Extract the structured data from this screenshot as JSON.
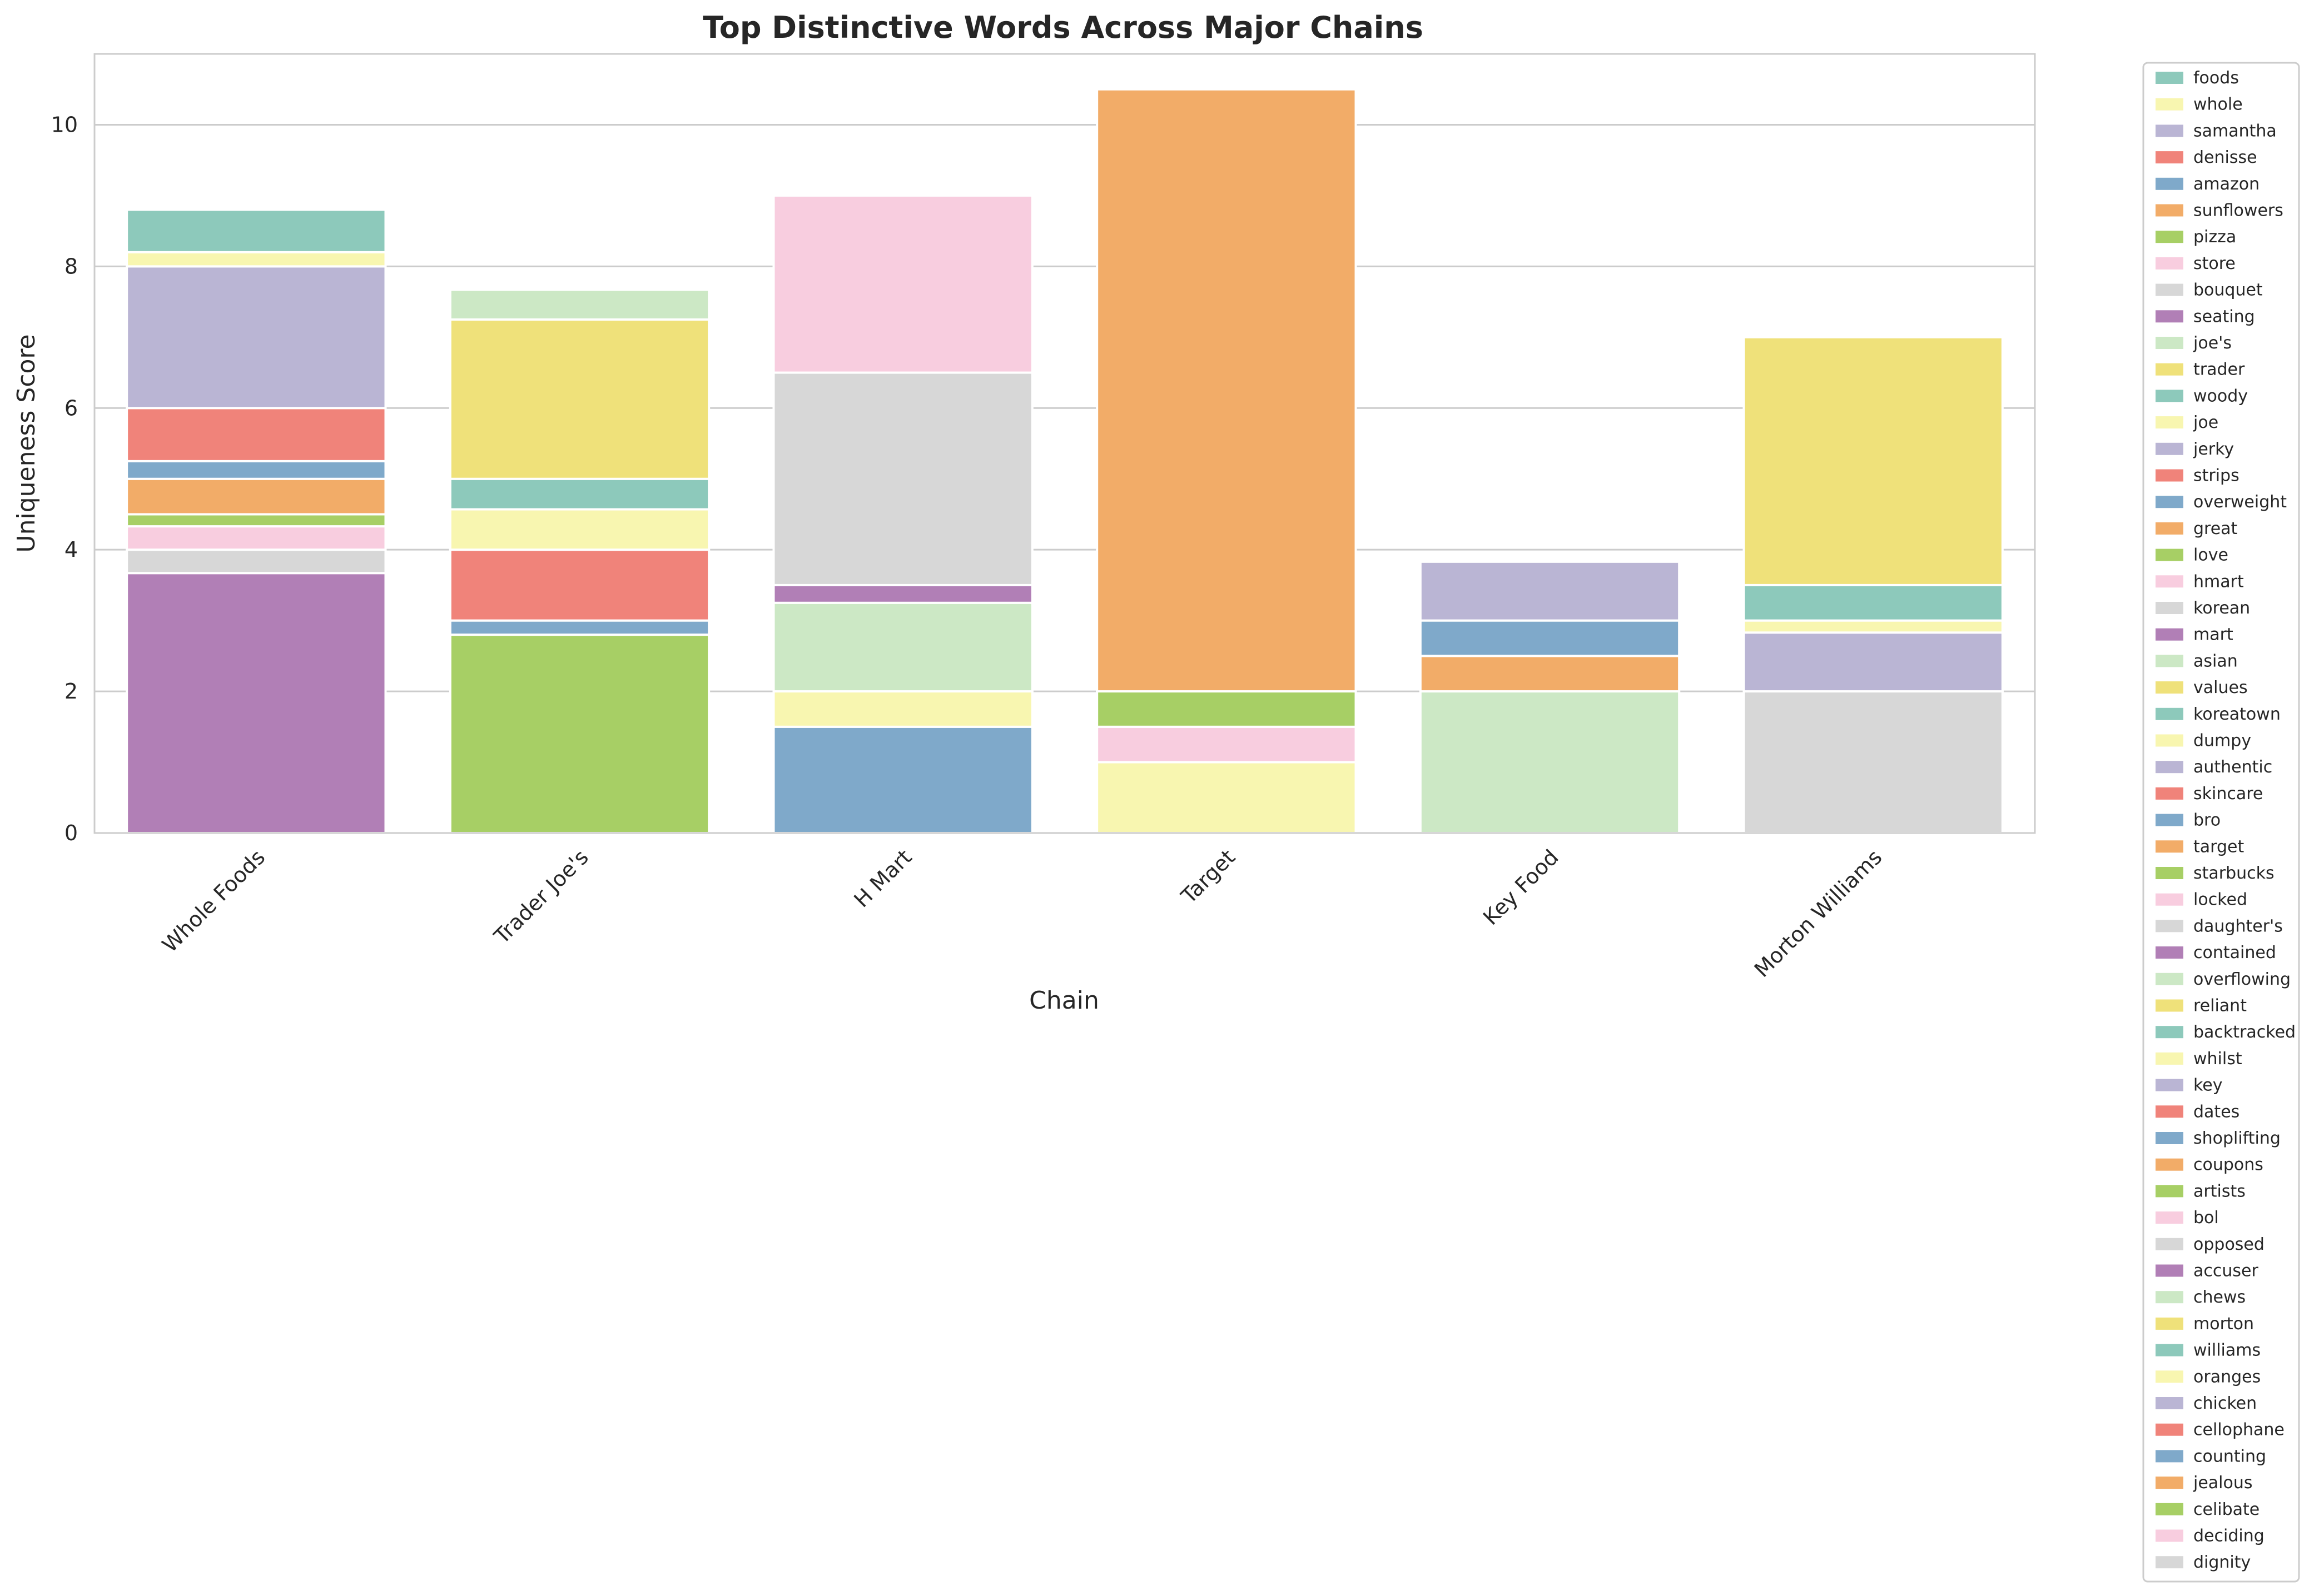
{
  "palette": [
    "#8dc9bb",
    "#f8f6b0",
    "#bab5d4",
    "#f0837a",
    "#7fa9ca",
    "#f2ac68",
    "#a7cf65",
    "#f8cddf",
    "#d7d7d7",
    "#b17fb6",
    "#cce8c5",
    "#efe17a"
  ],
  "chart_data": {
    "type": "bar",
    "stacked": true,
    "title": "Top Distinctive Words Across Major Chains",
    "xlabel": "Chain",
    "ylabel": "Uniqueness Score",
    "ylim": [
      0,
      11
    ],
    "yticks": [
      0,
      2,
      4,
      6,
      8,
      10
    ],
    "grid": true,
    "legend_position": "outside-right",
    "categories": [
      "Whole Foods",
      "Trader Joe's",
      "H Mart",
      "Target",
      "Key Food",
      "Morton Williams"
    ],
    "legend": [
      "foods",
      "whole",
      "samantha",
      "denisse",
      "amazon",
      "sunflowers",
      "pizza",
      "store",
      "bouquet",
      "seating",
      "joe's",
      "trader",
      "woody",
      "joe",
      "jerky",
      "strips",
      "overweight",
      "great",
      "love",
      "hmart",
      "korean",
      "mart",
      "asian",
      "values",
      "koreatown",
      "dumpy",
      "authentic",
      "skincare",
      "bro",
      "target",
      "starbucks",
      "locked",
      "daughter's",
      "contained",
      "overflowing",
      "reliant",
      "backtracked",
      "whilst",
      "key",
      "dates",
      "shoplifting",
      "coupons",
      "artists",
      "bol",
      "opposed",
      "accuser",
      "chews",
      "morton",
      "williams",
      "oranges",
      "chicken",
      "cellophane",
      "counting",
      "jealous",
      "celibate",
      "deciding",
      "dignity"
    ],
    "stacks": [
      {
        "category": "Whole Foods",
        "segments": [
          {
            "word": "accuser",
            "value": 3.67
          },
          {
            "word": "opposed",
            "value": 0.33
          },
          {
            "word": "bol",
            "value": 0.33
          },
          {
            "word": "artists",
            "value": 0.17
          },
          {
            "word": "coupons",
            "value": 0.5
          },
          {
            "word": "shoplifting",
            "value": 0.25
          },
          {
            "word": "dates",
            "value": 0.75
          },
          {
            "word": "key",
            "value": 2.0
          },
          {
            "word": "whilst",
            "value": 0.2
          },
          {
            "word": "backtracked",
            "value": 0.6
          }
        ]
      },
      {
        "category": "Trader Joe's",
        "segments": [
          {
            "word": "starbucks",
            "value": 2.8
          },
          {
            "word": "bro",
            "value": 0.2
          },
          {
            "word": "skincare",
            "value": 1.0
          },
          {
            "word": "dumpy",
            "value": 0.57
          },
          {
            "word": "koreatown",
            "value": 0.43
          },
          {
            "word": "values",
            "value": 2.25
          },
          {
            "word": "joe's",
            "value": 0.42
          }
        ]
      },
      {
        "category": "H Mart",
        "segments": [
          {
            "word": "overweight",
            "value": 1.5
          },
          {
            "word": "whole",
            "value": 0.5
          },
          {
            "word": "asian",
            "value": 1.25
          },
          {
            "word": "mart",
            "value": 0.25
          },
          {
            "word": "korean",
            "value": 3.0
          },
          {
            "word": "hmart",
            "value": 2.5
          }
        ]
      },
      {
        "category": "Target",
        "segments": [
          {
            "word": "whole",
            "value": 1.0
          },
          {
            "word": "store",
            "value": 0.5
          },
          {
            "word": "pizza",
            "value": 0.5
          },
          {
            "word": "target",
            "value": 8.5
          }
        ]
      },
      {
        "category": "Key Food",
        "segments": [
          {
            "word": "chews",
            "value": 2.0
          },
          {
            "word": "great",
            "value": 0.5
          },
          {
            "word": "amazon",
            "value": 0.5
          },
          {
            "word": "samantha",
            "value": 0.83
          }
        ]
      },
      {
        "category": "Morton Williams",
        "segments": [
          {
            "word": "dignity",
            "value": 2.0
          },
          {
            "word": "chicken",
            "value": 0.83
          },
          {
            "word": "oranges",
            "value": 0.17
          },
          {
            "word": "williams",
            "value": 0.5
          },
          {
            "word": "morton",
            "value": 3.5
          }
        ]
      }
    ]
  }
}
